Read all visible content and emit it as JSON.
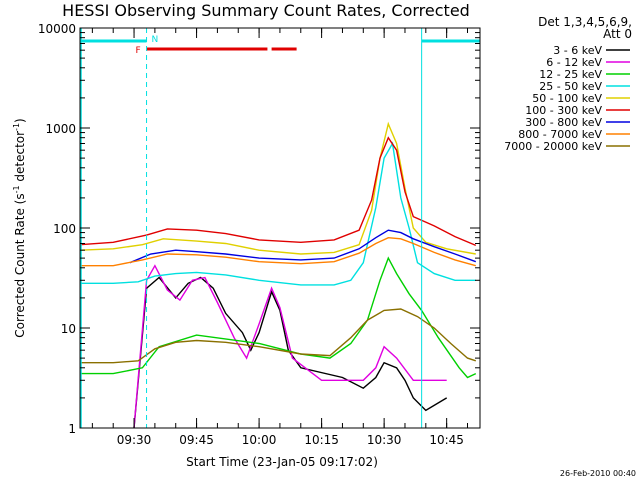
{
  "chart_data": {
    "type": "line",
    "title": "HESSI Observing Summary Count Rates, Corrected",
    "xlabel": "Start Time (23-Jan-05 09:17:02)",
    "ylabel": "Corrected Count Rate (s⁻¹ detector⁻¹)",
    "ylabel_main": "Corrected Count Rate (s",
    "ylabel_sup1": "-1",
    "ylabel_mid": " detector",
    "ylabel_sup2": "-1",
    "ylabel_end": ")",
    "yscale": "log",
    "xlim": [
      "09:17:02",
      "10:53:00"
    ],
    "ylim": [
      1,
      10000
    ],
    "x_ticks": [
      "09:30",
      "09:45",
      "10:00",
      "10:15",
      "10:30",
      "10:45"
    ],
    "y_ticks": [
      "1",
      "10",
      "100",
      "1000",
      "10000"
    ],
    "legend_header": [
      "Det 1,3,4,5,6,9,",
      "Att 0"
    ],
    "legend_position": "top-right outside",
    "timestamp": "26-Feb-2010 00:40",
    "flags": {
      "night_label": "N",
      "flare_label": "F",
      "night_bars": [
        [
          "09:17",
          "09:33"
        ],
        [
          "10:39",
          "10:53"
        ]
      ],
      "flare_bars": [
        [
          "09:33",
          "10:02"
        ],
        [
          "10:03",
          "10:09"
        ]
      ],
      "night_color": "#00e0e0",
      "flare_color": "#e00000"
    },
    "series": [
      {
        "name": "3 - 6 keV",
        "color": "#000000",
        "points": [
          [
            "09:30",
            0.6
          ],
          [
            "09:33",
            25
          ],
          [
            "09:36",
            32
          ],
          [
            "09:40",
            20
          ],
          [
            "09:43",
            28
          ],
          [
            "09:46",
            32
          ],
          [
            "09:49",
            25
          ],
          [
            "09:52",
            14
          ],
          [
            "09:56",
            9
          ],
          [
            "09:58",
            6
          ],
          [
            "10:00",
            9
          ],
          [
            "10:03",
            23
          ],
          [
            "10:05",
            15
          ],
          [
            "10:07",
            6
          ],
          [
            "10:10",
            4
          ],
          [
            "10:20",
            3.2
          ],
          [
            "10:25",
            2.5
          ],
          [
            "10:28",
            3.2
          ],
          [
            "10:30",
            4.5
          ],
          [
            "10:33",
            4
          ],
          [
            "10:35",
            3
          ],
          [
            "10:37",
            2
          ],
          [
            "10:40",
            1.5
          ],
          [
            "10:45",
            2
          ]
        ]
      },
      {
        "name": "6 - 12 keV",
        "color": "#e000e0",
        "points": [
          [
            "09:30",
            0.6
          ],
          [
            "09:33",
            30
          ],
          [
            "09:35",
            42
          ],
          [
            "09:38",
            24
          ],
          [
            "09:41",
            19
          ],
          [
            "09:44",
            30
          ],
          [
            "09:47",
            32
          ],
          [
            "09:50",
            18
          ],
          [
            "09:54",
            8
          ],
          [
            "09:57",
            5
          ],
          [
            "10:00",
            11
          ],
          [
            "10:03",
            25
          ],
          [
            "10:05",
            16
          ],
          [
            "10:08",
            5
          ],
          [
            "10:15",
            3
          ],
          [
            "10:25",
            3
          ],
          [
            "10:28",
            4
          ],
          [
            "10:30",
            6.5
          ],
          [
            "10:33",
            5
          ],
          [
            "10:37",
            3
          ],
          [
            "10:40",
            3
          ],
          [
            "10:45",
            3
          ]
        ]
      },
      {
        "name": "12 - 25 keV",
        "color": "#00d000",
        "points": [
          [
            "09:17",
            3.5
          ],
          [
            "09:25",
            3.5
          ],
          [
            "09:32",
            4
          ],
          [
            "09:36",
            6.5
          ],
          [
            "09:45",
            8.5
          ],
          [
            "10:00",
            7
          ],
          [
            "10:10",
            5.5
          ],
          [
            "10:17",
            5
          ],
          [
            "10:22",
            7
          ],
          [
            "10:26",
            12
          ],
          [
            "10:29",
            30
          ],
          [
            "10:31",
            50
          ],
          [
            "10:33",
            35
          ],
          [
            "10:36",
            22
          ],
          [
            "10:39",
            15
          ],
          [
            "10:43",
            8
          ],
          [
            "10:48",
            4
          ],
          [
            "10:50",
            3.2
          ],
          [
            "10:52",
            3.5
          ]
        ]
      },
      {
        "name": "25 - 50 keV",
        "color": "#00e0e0",
        "points": [
          [
            "09:17",
            28
          ],
          [
            "09:25",
            28
          ],
          [
            "09:31",
            29
          ],
          [
            "09:35",
            33
          ],
          [
            "09:40",
            35
          ],
          [
            "09:45",
            36
          ],
          [
            "09:52",
            34
          ],
          [
            "10:00",
            30
          ],
          [
            "10:10",
            27
          ],
          [
            "10:18",
            27
          ],
          [
            "10:22",
            30
          ],
          [
            "10:25",
            45
          ],
          [
            "10:28",
            160
          ],
          [
            "10:30",
            500
          ],
          [
            "10:32",
            700
          ],
          [
            "10:34",
            200
          ],
          [
            "10:36",
            100
          ],
          [
            "10:38",
            45
          ],
          [
            "10:42",
            35
          ],
          [
            "10:47",
            30
          ],
          [
            "10:52",
            30
          ]
        ]
      },
      {
        "name": "50 - 100 keV",
        "color": "#e0d000",
        "points": [
          [
            "09:17",
            60
          ],
          [
            "09:25",
            62
          ],
          [
            "09:32",
            68
          ],
          [
            "09:37",
            78
          ],
          [
            "09:45",
            74
          ],
          [
            "09:52",
            70
          ],
          [
            "10:00",
            60
          ],
          [
            "10:10",
            55
          ],
          [
            "10:18",
            57
          ],
          [
            "10:24",
            68
          ],
          [
            "10:27",
            150
          ],
          [
            "10:29",
            500
          ],
          [
            "10:31",
            1100
          ],
          [
            "10:33",
            700
          ],
          [
            "10:35",
            250
          ],
          [
            "10:37",
            100
          ],
          [
            "10:40",
            72
          ],
          [
            "10:45",
            62
          ],
          [
            "10:52",
            55
          ]
        ]
      },
      {
        "name": "100 - 300 keV",
        "color": "#e00000",
        "points": [
          [
            "09:17",
            68
          ],
          [
            "09:25",
            72
          ],
          [
            "09:33",
            85
          ],
          [
            "09:38",
            98
          ],
          [
            "09:45",
            95
          ],
          [
            "09:52",
            88
          ],
          [
            "10:00",
            76
          ],
          [
            "10:10",
            72
          ],
          [
            "10:18",
            76
          ],
          [
            "10:24",
            95
          ],
          [
            "10:27",
            190
          ],
          [
            "10:29",
            500
          ],
          [
            "10:31",
            800
          ],
          [
            "10:33",
            600
          ],
          [
            "10:35",
            230
          ],
          [
            "10:37",
            130
          ],
          [
            "10:42",
            105
          ],
          [
            "10:47",
            82
          ],
          [
            "10:52",
            67
          ]
        ]
      },
      {
        "name": "300 - 800 keV",
        "color": "#0000e0",
        "points": [
          [
            "09:29",
            45
          ],
          [
            "09:34",
            55
          ],
          [
            "09:40",
            60
          ],
          [
            "09:45",
            58
          ],
          [
            "09:52",
            55
          ],
          [
            "10:00",
            50
          ],
          [
            "10:10",
            48
          ],
          [
            "10:18",
            50
          ],
          [
            "10:24",
            62
          ],
          [
            "10:28",
            80
          ],
          [
            "10:31",
            95
          ],
          [
            "10:34",
            90
          ],
          [
            "10:37",
            78
          ],
          [
            "10:42",
            65
          ],
          [
            "10:47",
            55
          ],
          [
            "10:52",
            46
          ]
        ]
      },
      {
        "name": "800 - 7000 keV",
        "color": "#ff8000",
        "points": [
          [
            "09:17",
            42
          ],
          [
            "09:25",
            42
          ],
          [
            "09:32",
            48
          ],
          [
            "09:38",
            55
          ],
          [
            "09:45",
            54
          ],
          [
            "09:52",
            51
          ],
          [
            "10:00",
            46
          ],
          [
            "10:10",
            44
          ],
          [
            "10:18",
            46
          ],
          [
            "10:24",
            56
          ],
          [
            "10:28",
            70
          ],
          [
            "10:31",
            80
          ],
          [
            "10:34",
            78
          ],
          [
            "10:37",
            70
          ],
          [
            "10:42",
            57
          ],
          [
            "10:47",
            48
          ],
          [
            "10:52",
            42
          ]
        ]
      },
      {
        "name": "7000 - 20000 keV",
        "color": "#8a7000",
        "points": [
          [
            "09:17",
            4.5
          ],
          [
            "09:25",
            4.5
          ],
          [
            "09:31",
            4.7
          ],
          [
            "09:35",
            6.2
          ],
          [
            "09:40",
            7.2
          ],
          [
            "09:45",
            7.5
          ],
          [
            "09:52",
            7.2
          ],
          [
            "10:00",
            6.5
          ],
          [
            "10:10",
            5.5
          ],
          [
            "10:17",
            5.3
          ],
          [
            "10:22",
            8
          ],
          [
            "10:26",
            12
          ],
          [
            "10:30",
            15
          ],
          [
            "10:34",
            15.5
          ],
          [
            "10:38",
            13
          ],
          [
            "10:42",
            10
          ],
          [
            "10:46",
            7
          ],
          [
            "10:50",
            5
          ],
          [
            "10:52",
            4.7
          ]
        ]
      }
    ]
  }
}
